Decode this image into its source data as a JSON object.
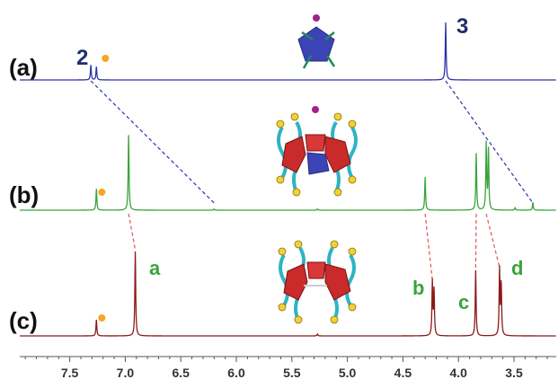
{
  "chart_data": {
    "type": "line",
    "x_axis": {
      "reversed": true,
      "xlim": [
        7.95,
        3.12
      ],
      "tick_labels": [
        "7.5",
        "7.0",
        "6.5",
        "6.0",
        "5.5",
        "5.0",
        "4.5",
        "4.0",
        "3.5"
      ],
      "major_ticks": [
        7.5,
        7.0,
        6.5,
        6.0,
        5.5,
        5.0,
        4.5,
        4.0,
        3.5
      ],
      "minor_step": 0.1
    },
    "series": [
      {
        "panel": "(a)",
        "color": "#2b33a6",
        "peaks": [
          {
            "x": 7.31,
            "height": 0.26,
            "label": "2"
          },
          {
            "x": 7.26,
            "height": 0.23,
            "marker": "solvent"
          },
          {
            "x": 4.115,
            "height": 1.0,
            "label": "3"
          }
        ]
      },
      {
        "panel": "(b)",
        "color": "#3aa33a",
        "peaks": [
          {
            "x": 7.26,
            "height": 0.27,
            "marker": "solvent"
          },
          {
            "x": 6.97,
            "height": 0.95
          },
          {
            "x": 6.2,
            "height": 0.015
          },
          {
            "x": 5.27,
            "height": 0.015
          },
          {
            "x": 4.3,
            "height": 0.42
          },
          {
            "x": 3.84,
            "height": 0.72
          },
          {
            "x": 3.75,
            "height": 0.84
          },
          {
            "x": 3.73,
            "height": 0.76
          },
          {
            "x": 3.49,
            "height": 0.03
          },
          {
            "x": 3.33,
            "height": 0.1
          }
        ]
      },
      {
        "panel": "(c)",
        "color": "#8b1a1a",
        "peaks": [
          {
            "x": 7.26,
            "height": 0.18,
            "marker": "solvent"
          },
          {
            "x": 6.91,
            "height": 0.94,
            "label": "a"
          },
          {
            "x": 5.27,
            "height": 0.02
          },
          {
            "x": 4.235,
            "height": 0.6,
            "label": "b"
          },
          {
            "x": 4.22,
            "height": 0.5
          },
          {
            "x": 3.845,
            "height": 0.73,
            "label": "c"
          },
          {
            "x": 3.63,
            "height": 0.74,
            "label": "d"
          },
          {
            "x": 3.615,
            "height": 0.56
          }
        ]
      }
    ],
    "correlation_lines": [
      {
        "from_panel": "(a)",
        "to_panel": "(b)",
        "from_x": 7.31,
        "to_x": 6.2
      },
      {
        "from_panel": "(a)",
        "to_panel": "(b)",
        "from_x": 4.115,
        "to_x": 3.33
      },
      {
        "from_panel": "(b)",
        "to_panel": "(c)",
        "from_x": 6.97,
        "to_x": 6.91
      },
      {
        "from_panel": "(b)",
        "to_panel": "(c)",
        "from_x": 4.3,
        "to_x": 4.235
      },
      {
        "from_panel": "(b)",
        "to_panel": "(c)",
        "from_x": 3.84,
        "to_x": 3.845
      },
      {
        "from_panel": "(b)",
        "to_panel": "(c)",
        "from_x": 3.75,
        "to_x": 3.63
      }
    ],
    "annotations": {
      "solvent_marker_color": "#f5a623"
    }
  }
}
